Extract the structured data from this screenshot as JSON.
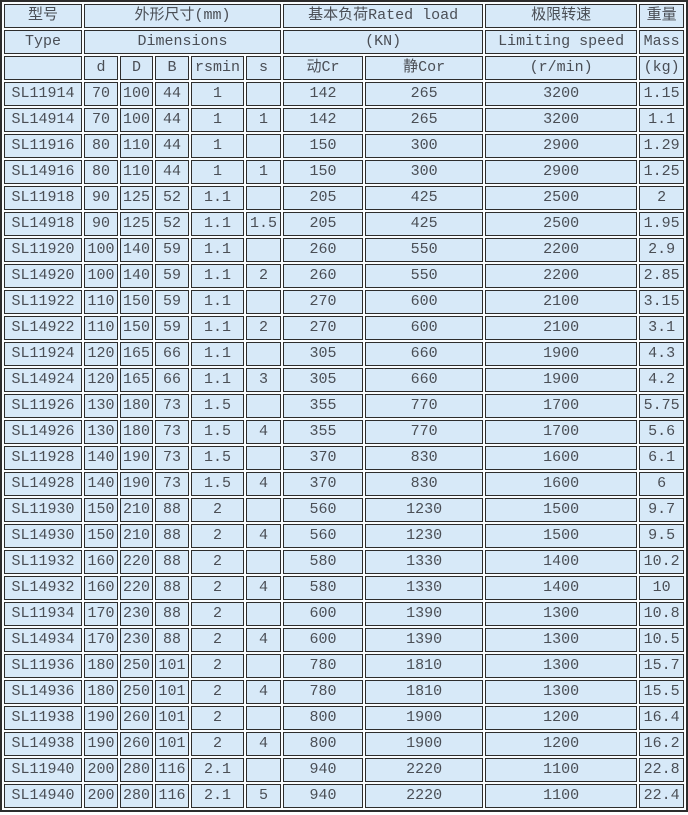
{
  "colors": {
    "cell_background": "#d7e9f8",
    "grid_border": "#2d2d2d",
    "gap_between_cells": "#fafdff",
    "text": "#4a4e55"
  },
  "table": {
    "header": {
      "row1": {
        "type": "型号",
        "dimensions": "外形尺寸(mm)",
        "rated_load": "基本负荷Rated load",
        "limiting_speed": "极限转速",
        "mass": "重量"
      },
      "row2": {
        "type": "Type",
        "dimensions": "Dimensions",
        "rated_load": "(KN)",
        "limiting_speed": "Limiting speed",
        "mass": "Mass"
      },
      "row3": {
        "type": "",
        "d": "d",
        "D": "D",
        "B": "B",
        "rsmin": "rsmin",
        "s": "s",
        "cr_dynamic": "动Cr",
        "cor_static": "静Cor",
        "limiting_speed": "(r/min)",
        "mass": "(kg)"
      }
    },
    "column_keys": [
      "type",
      "d",
      "D",
      "B",
      "rsmin",
      "s",
      "cr_dynamic",
      "cor_static",
      "limiting_speed",
      "mass"
    ],
    "rows": [
      [
        "SL11914",
        "70",
        "100",
        "44",
        "1",
        "",
        "142",
        "265",
        "3200",
        "1.15"
      ],
      [
        "SL14914",
        "70",
        "100",
        "44",
        "1",
        "1",
        "142",
        "265",
        "3200",
        "1.1"
      ],
      [
        "SL11916",
        "80",
        "110",
        "44",
        "1",
        "",
        "150",
        "300",
        "2900",
        "1.29"
      ],
      [
        "SL14916",
        "80",
        "110",
        "44",
        "1",
        "1",
        "150",
        "300",
        "2900",
        "1.25"
      ],
      [
        "SL11918",
        "90",
        "125",
        "52",
        "1.1",
        "",
        "205",
        "425",
        "2500",
        "2"
      ],
      [
        "SL14918",
        "90",
        "125",
        "52",
        "1.1",
        "1.5",
        "205",
        "425",
        "2500",
        "1.95"
      ],
      [
        "SL11920",
        "100",
        "140",
        "59",
        "1.1",
        "",
        "260",
        "550",
        "2200",
        "2.9"
      ],
      [
        "SL14920",
        "100",
        "140",
        "59",
        "1.1",
        "2",
        "260",
        "550",
        "2200",
        "2.85"
      ],
      [
        "SL11922",
        "110",
        "150",
        "59",
        "1.1",
        "",
        "270",
        "600",
        "2100",
        "3.15"
      ],
      [
        "SL14922",
        "110",
        "150",
        "59",
        "1.1",
        "2",
        "270",
        "600",
        "2100",
        "3.1"
      ],
      [
        "SL11924",
        "120",
        "165",
        "66",
        "1.1",
        "",
        "305",
        "660",
        "1900",
        "4.3"
      ],
      [
        "SL14924",
        "120",
        "165",
        "66",
        "1.1",
        "3",
        "305",
        "660",
        "1900",
        "4.2"
      ],
      [
        "SL11926",
        "130",
        "180",
        "73",
        "1.5",
        "",
        "355",
        "770",
        "1700",
        "5.75"
      ],
      [
        "SL14926",
        "130",
        "180",
        "73",
        "1.5",
        "4",
        "355",
        "770",
        "1700",
        "5.6"
      ],
      [
        "SL11928",
        "140",
        "190",
        "73",
        "1.5",
        "",
        "370",
        "830",
        "1600",
        "6.1"
      ],
      [
        "SL14928",
        "140",
        "190",
        "73",
        "1.5",
        "4",
        "370",
        "830",
        "1600",
        "6"
      ],
      [
        "SL11930",
        "150",
        "210",
        "88",
        "2",
        "",
        "560",
        "1230",
        "1500",
        "9.7"
      ],
      [
        "SL14930",
        "150",
        "210",
        "88",
        "2",
        "4",
        "560",
        "1230",
        "1500",
        "9.5"
      ],
      [
        "SL11932",
        "160",
        "220",
        "88",
        "2",
        "",
        "580",
        "1330",
        "1400",
        "10.2"
      ],
      [
        "SL14932",
        "160",
        "220",
        "88",
        "2",
        "4",
        "580",
        "1330",
        "1400",
        "10"
      ],
      [
        "SL11934",
        "170",
        "230",
        "88",
        "2",
        "",
        "600",
        "1390",
        "1300",
        "10.8"
      ],
      [
        "SL14934",
        "170",
        "230",
        "88",
        "2",
        "4",
        "600",
        "1390",
        "1300",
        "10.5"
      ],
      [
        "SL11936",
        "180",
        "250",
        "101",
        "2",
        "",
        "780",
        "1810",
        "1300",
        "15.7"
      ],
      [
        "SL14936",
        "180",
        "250",
        "101",
        "2",
        "4",
        "780",
        "1810",
        "1300",
        "15.5"
      ],
      [
        "SL11938",
        "190",
        "260",
        "101",
        "2",
        "",
        "800",
        "1900",
        "1200",
        "16.4"
      ],
      [
        "SL14938",
        "190",
        "260",
        "101",
        "2",
        "4",
        "800",
        "1900",
        "1200",
        "16.2"
      ],
      [
        "SL11940",
        "200",
        "280",
        "116",
        "2.1",
        "",
        "940",
        "2220",
        "1100",
        "22.8"
      ],
      [
        "SL14940",
        "200",
        "280",
        "116",
        "2.1",
        "5",
        "940",
        "2220",
        "1100",
        "22.4"
      ]
    ]
  }
}
